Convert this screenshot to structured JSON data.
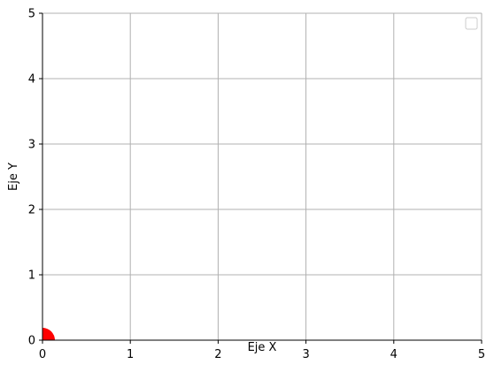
{
  "chart_data": {
    "type": "scatter",
    "xlabel": "Eje X",
    "ylabel": "Eje Y",
    "xlim": [
      0,
      5
    ],
    "ylim": [
      0,
      5
    ],
    "x_ticks": [
      "0",
      "1",
      "2",
      "3",
      "4",
      "5"
    ],
    "y_ticks": [
      "0",
      "1",
      "2",
      "3",
      "4",
      "5"
    ],
    "grid": true,
    "legend": {
      "placement": "top-right",
      "entries": []
    },
    "series": [
      {
        "color": "#ff0000",
        "marker": "circle",
        "points": [
          {
            "x": 0,
            "y": 0
          }
        ]
      }
    ]
  }
}
